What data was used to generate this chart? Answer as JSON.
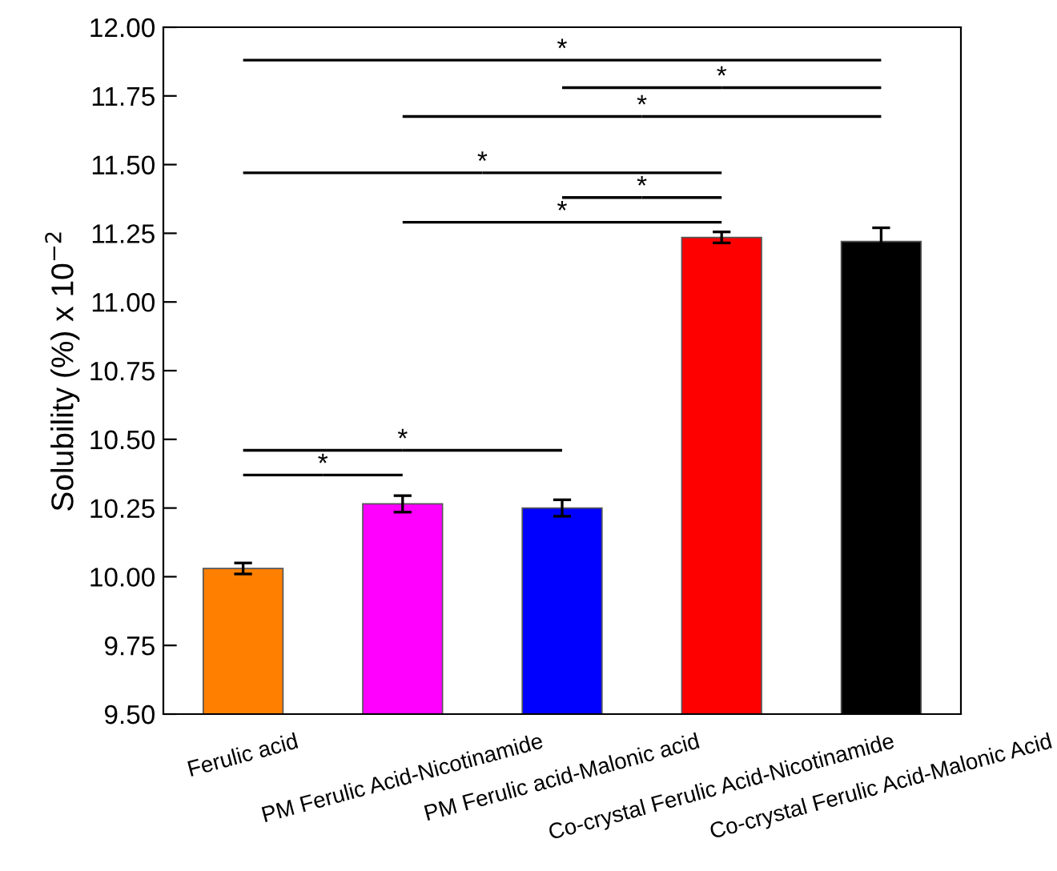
{
  "chart_data": {
    "type": "bar",
    "ylabel": "Solubility (%) x 10$^{−2}$",
    "categories": [
      "Ferulic acid",
      "PM Ferulic Acid-Nicotinamide",
      "PM Ferulic acid-Malonic acid",
      "Co-crystal Ferulic Acid-Nicotinamide",
      "Co-crystal Ferulic Acid-Malonic Acid"
    ],
    "values": [
      10.03,
      10.265,
      10.25,
      11.235,
      11.22
    ],
    "errors": [
      0.02,
      0.03,
      0.03,
      0.02,
      0.05
    ],
    "colors": [
      "#ff8000",
      "#ff00ff",
      "#0000ff",
      "#ff0000",
      "#000000"
    ],
    "ylim": [
      9.5,
      12.0
    ],
    "yticks": [
      {
        "value": 9.5,
        "label": "9.50"
      },
      {
        "value": 9.75,
        "label": "9.75"
      },
      {
        "value": 10.0,
        "label": "10.00"
      },
      {
        "value": 10.25,
        "label": "10.25"
      },
      {
        "value": 10.5,
        "label": "10.50"
      },
      {
        "value": 10.75,
        "label": "10.75"
      },
      {
        "value": 11.0,
        "label": "11.00"
      },
      {
        "value": 11.25,
        "label": "11.25"
      },
      {
        "value": 11.5,
        "label": "11.50"
      },
      {
        "value": 11.75,
        "label": "11.75"
      },
      {
        "value": 12.0,
        "label": "12.00"
      }
    ],
    "grid": false,
    "annotations": [
      "*",
      "*",
      "*",
      "*",
      "*",
      "*",
      "*",
      "*"
    ]
  }
}
